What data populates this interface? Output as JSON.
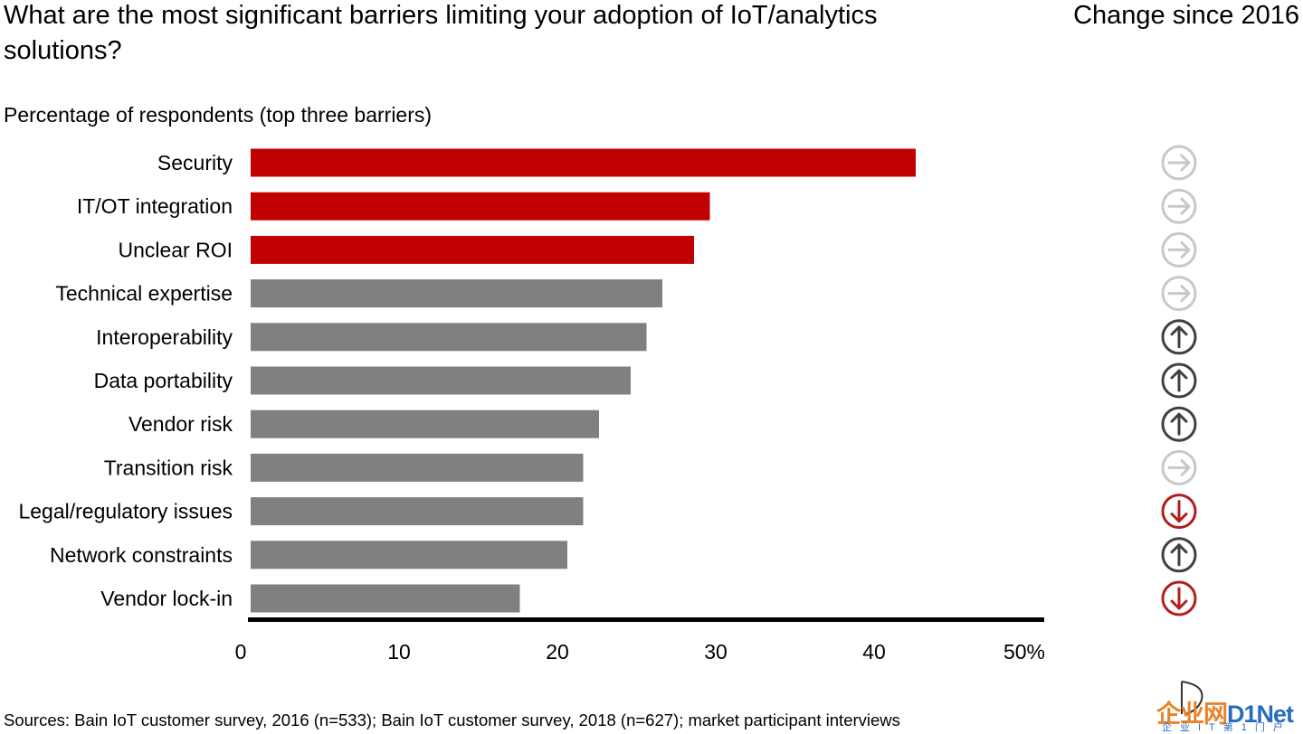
{
  "title": "What are the most significant barriers limiting your adoption of IoT/analytics solutions?",
  "change_title": "Change since 2016",
  "subtitle": "Percentage of respondents (top three barriers)",
  "source": "Sources: Bain IoT customer survey, 2016 (n=533); Bain IoT customer survey, 2018 (n=627); market participant interviews",
  "logo": {
    "main_a": "企业网",
    "main_b": "D1Net",
    "sub": "企业IT第1门户"
  },
  "colors": {
    "highlight": "#c00000",
    "bar": "#808080",
    "arrow_up": "#404040",
    "arrow_flat": "#c8c8c8",
    "arrow_down": "#b51c1c"
  },
  "chart_data": {
    "type": "bar",
    "orientation": "horizontal",
    "categories": [
      "Security",
      "IT/OT integration",
      "Unclear ROI",
      "Technical expertise",
      "Interoperability",
      "Data portability",
      "Vendor risk",
      "Transition risk",
      "Legal/regulatory issues",
      "Network constraints",
      "Vendor lock-in"
    ],
    "values": [
      42,
      29,
      28,
      26,
      25,
      24,
      22,
      21,
      21,
      20,
      17
    ],
    "highlighted": [
      true,
      true,
      true,
      false,
      false,
      false,
      false,
      false,
      false,
      false,
      false
    ],
    "change_since_2016": [
      "flat",
      "flat",
      "flat",
      "flat",
      "up",
      "up",
      "up",
      "flat",
      "down",
      "up",
      "down"
    ],
    "xlim": [
      0,
      50
    ],
    "xticks": [
      0,
      10,
      20,
      30,
      40,
      50
    ],
    "xtick_labels": [
      "0",
      "10",
      "20",
      "30",
      "40",
      "50%"
    ],
    "grid": false,
    "legend": "none"
  }
}
